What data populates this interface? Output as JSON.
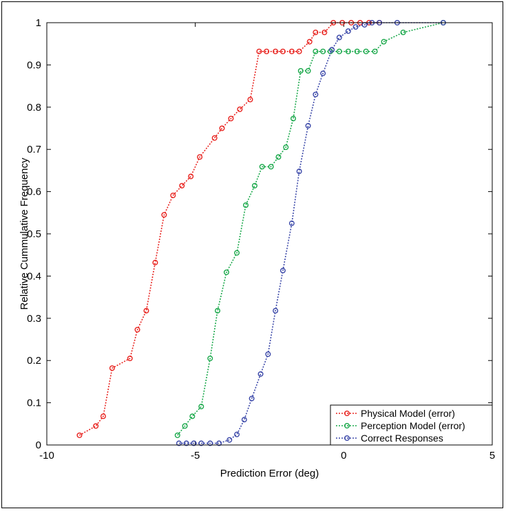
{
  "chart_data": {
    "type": "line",
    "xlabel": "Prediction Error (deg)",
    "ylabel": "Relative Cummulative Frequency",
    "xlim": [
      -10,
      5
    ],
    "ylim": [
      0,
      1
    ],
    "xticks": [
      -10,
      -5,
      0,
      5
    ],
    "yticks": [
      0,
      0.1,
      0.2,
      0.3,
      0.4,
      0.5,
      0.6,
      0.7,
      0.8,
      0.9,
      1
    ],
    "grid": false,
    "legend_position": "bottom-right",
    "series": [
      {
        "name": "Physical Model (error)",
        "color": "#e8231f",
        "marker": "circle",
        "line_style": "dotted",
        "x": [
          -8.9,
          -8.35,
          -8.1,
          -7.8,
          -7.2,
          -6.95,
          -6.65,
          -6.35,
          -6.05,
          -5.75,
          -5.45,
          -5.15,
          -4.85,
          -4.35,
          -4.1,
          -3.8,
          -3.5,
          -3.15,
          -2.85,
          -2.6,
          -2.3,
          -2.05,
          -1.75,
          -1.5,
          -1.15,
          -0.95,
          -0.65,
          -0.35,
          -0.05,
          0.25,
          0.55,
          0.85,
          1.2
        ],
        "y": [
          0.023,
          0.045,
          0.068,
          0.182,
          0.205,
          0.273,
          0.318,
          0.432,
          0.545,
          0.591,
          0.614,
          0.636,
          0.682,
          0.727,
          0.75,
          0.773,
          0.795,
          0.818,
          0.932,
          0.932,
          0.932,
          0.932,
          0.932,
          0.932,
          0.955,
          0.977,
          0.977,
          1.0,
          1.0,
          1.0,
          1.0,
          1.0,
          1.0
        ]
      },
      {
        "name": "Perception Model (error)",
        "color": "#19a84a",
        "marker": "circle",
        "line_style": "dotted",
        "x": [
          -5.6,
          -5.35,
          -5.1,
          -4.8,
          -4.5,
          -4.25,
          -3.95,
          -3.6,
          -3.3,
          -3.0,
          -2.75,
          -2.45,
          -2.2,
          -1.95,
          -1.7,
          -1.45,
          -1.2,
          -0.95,
          -0.7,
          -0.45,
          -0.15,
          0.15,
          0.45,
          0.75,
          1.05,
          1.35,
          2.0,
          3.35
        ],
        "y": [
          0.023,
          0.045,
          0.068,
          0.091,
          0.205,
          0.318,
          0.409,
          0.455,
          0.568,
          0.614,
          0.659,
          0.659,
          0.682,
          0.705,
          0.773,
          0.886,
          0.886,
          0.932,
          0.932,
          0.932,
          0.932,
          0.932,
          0.932,
          0.932,
          0.932,
          0.955,
          0.977,
          1.0
        ]
      },
      {
        "name": "Correct Responses",
        "color": "#3a47a8",
        "marker": "circle",
        "line_style": "dotted",
        "x": [
          -5.55,
          -5.3,
          -5.05,
          -4.8,
          -4.5,
          -4.2,
          -3.85,
          -3.6,
          -3.35,
          -3.1,
          -2.8,
          -2.55,
          -2.3,
          -2.05,
          -1.75,
          -1.5,
          -1.2,
          -0.95,
          -0.7,
          -0.4,
          -0.15,
          0.15,
          0.4,
          0.7,
          0.95,
          1.2,
          1.8,
          3.35
        ],
        "y": [
          0.004,
          0.004,
          0.004,
          0.004,
          0.004,
          0.004,
          0.012,
          0.025,
          0.06,
          0.11,
          0.168,
          0.215,
          0.318,
          0.413,
          0.525,
          0.648,
          0.756,
          0.83,
          0.88,
          0.936,
          0.965,
          0.98,
          0.99,
          0.995,
          1.0,
          1.0,
          1.0,
          1.0
        ]
      }
    ]
  }
}
